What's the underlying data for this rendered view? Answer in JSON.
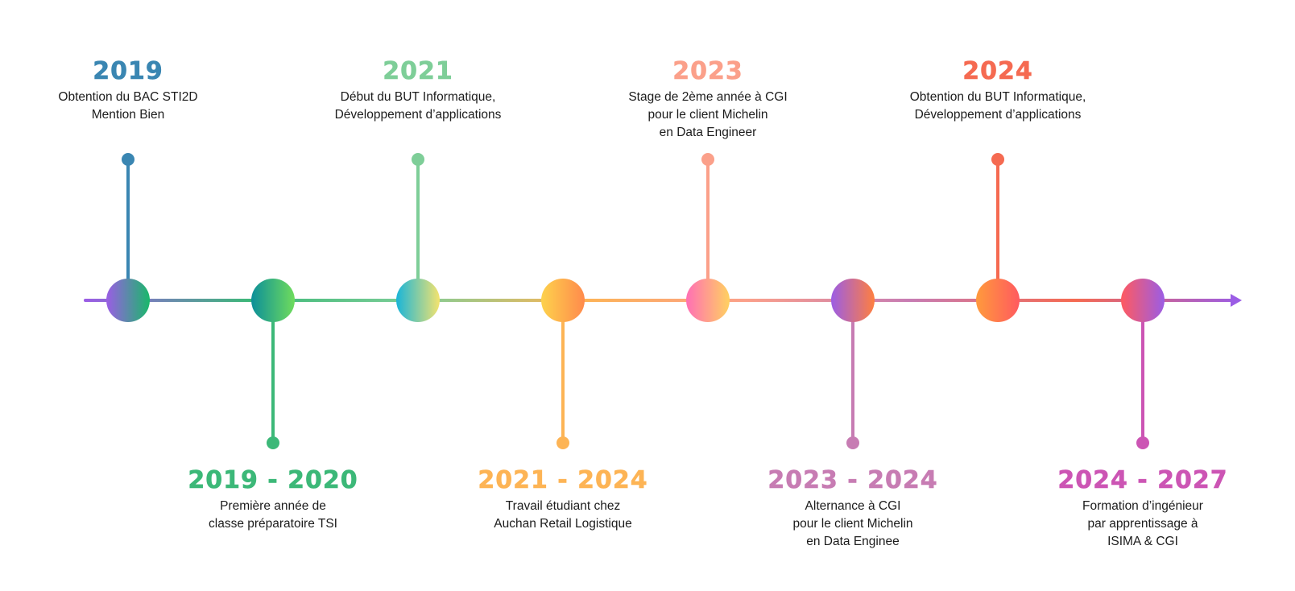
{
  "timeline": {
    "events": [
      {
        "year": "2019",
        "lines": [
          "Obtention du BAC STI2D",
          "Mention Bien"
        ],
        "position": "top",
        "color": "#3a86b2"
      },
      {
        "year": "2019 - 2020",
        "lines": [
          "Première année de",
          "classe préparatoire TSI"
        ],
        "position": "bottom",
        "color": "#3cb878"
      },
      {
        "year": "2021",
        "lines": [
          "Début du BUT Informatique,",
          "Développement d’applications"
        ],
        "position": "top",
        "color": "#7ece98"
      },
      {
        "year": "2021 - 2024",
        "lines": [
          "Travail étudiant chez",
          "Auchan Retail Logistique"
        ],
        "position": "bottom",
        "color": "#fdb455"
      },
      {
        "year": "2023",
        "lines": [
          "Stage de 2ème année à CGI",
          "pour le client Michelin",
          "en Data Engineer"
        ],
        "position": "top",
        "color": "#fba08a"
      },
      {
        "year": "2023 - 2024",
        "lines": [
          "Alternance à CGI",
          "pour le client Michelin",
          "en Data Enginee"
        ],
        "position": "bottom",
        "color": "#c77cb3"
      },
      {
        "year": "2024",
        "lines": [
          "Obtention du BUT Informatique,",
          "Développement d’applications"
        ],
        "position": "top",
        "color": "#f56a51"
      },
      {
        "year": "2024 - 2027",
        "lines": [
          "Formation d’ingénieur",
          "par apprentissage à",
          "ISIMA & CGI"
        ],
        "position": "bottom",
        "color": "#cc55b4"
      }
    ],
    "nodes": [
      {
        "from": "#9b5de5",
        "to": "#19b86a"
      },
      {
        "from": "#0c8f99",
        "to": "#6fdc5c"
      },
      {
        "from": "#19b5d9",
        "to": "#f4e36e"
      },
      {
        "from": "#fdd24c",
        "to": "#ff8a4c"
      },
      {
        "from": "#ff6fb5",
        "to": "#ffd160"
      },
      {
        "from": "#9b5de5",
        "to": "#ff7f3f"
      },
      {
        "from": "#ff9a3c",
        "to": "#ff5a5f"
      },
      {
        "from": "#ff5a5f",
        "to": "#9b5de5"
      }
    ],
    "axis_colors": [
      "#9b5de5",
      "#3cb878",
      "#7ece98",
      "#fdb455",
      "#fba08a",
      "#c77cb3",
      "#f56a51",
      "#9b5de5"
    ]
  }
}
